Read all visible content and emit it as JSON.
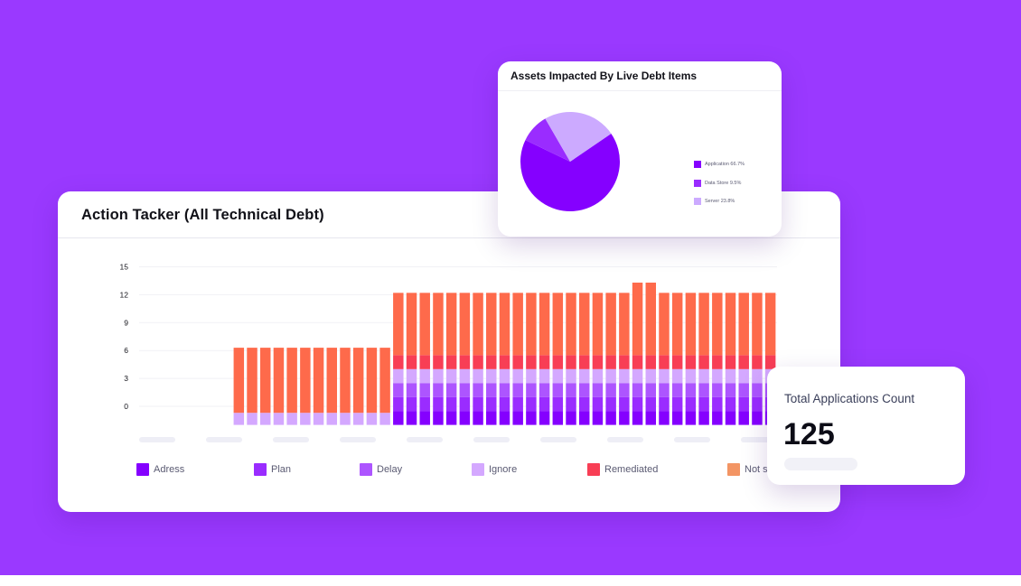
{
  "colors": {
    "background": "#9a39ff",
    "adress": "#8500ff",
    "plan": "#9a2cff",
    "delay": "#ad55ff",
    "ignore": "#d4a8ff",
    "remediated": "#f83e55",
    "not_started": "#fe6a4b"
  },
  "tracker": {
    "title": "Action Tacker (All Technical Debt)",
    "legend": [
      {
        "label": "Adress",
        "color": "#8500ff"
      },
      {
        "label": "Plan",
        "color": "#9a2cff"
      },
      {
        "label": "Delay",
        "color": "#ad55ff"
      },
      {
        "label": "Ignore",
        "color": "#d4a8ff"
      },
      {
        "label": "Remediated",
        "color": "#f83e55"
      },
      {
        "label": "Not s",
        "color": "#f39564"
      }
    ]
  },
  "assets": {
    "title": "Assets Impacted By Live Debt Items",
    "legend": [
      {
        "label": "Application 66.7%",
        "color": "#8500ff"
      },
      {
        "label": "Data Store 9.5%",
        "color": "#9a2cff"
      },
      {
        "label": "Server 23.8%",
        "color": "#ccaaff"
      }
    ]
  },
  "apps": {
    "title": "Total Applications Count",
    "count": "125"
  },
  "chart_data": [
    {
      "type": "bar",
      "stacked": true,
      "title": "Action Tacker (All Technical Debt)",
      "yticks": [
        "15",
        "12",
        "9",
        "6",
        "3",
        "0"
      ],
      "ylim": [
        -2,
        15
      ],
      "grid": true,
      "legend_position": "bottom",
      "bar_count": 48,
      "series": [
        {
          "name": "Adress",
          "color": "#8500ff",
          "values": [
            0,
            0,
            0,
            0,
            0,
            0,
            0,
            0,
            0,
            0,
            0,
            0,
            0,
            0,
            0,
            0,
            0,
            0,
            0,
            1.5,
            1.5,
            1.5,
            1.5,
            1.5,
            1.5,
            1.5,
            1.5,
            1.5,
            1.5,
            1.5,
            1.5,
            1.5,
            1.5,
            1.5,
            1.5,
            1.5,
            1.5,
            1.5,
            1.5,
            1.5,
            1.5,
            1.5,
            1.5,
            1.5,
            1.5,
            1.5,
            1.5,
            1.5
          ]
        },
        {
          "name": "Plan",
          "color": "#9a2cff",
          "values": [
            0,
            0,
            0,
            0,
            0,
            0,
            0,
            0,
            0,
            0,
            0,
            0,
            0,
            0,
            0,
            0,
            0,
            0,
            0,
            1.5,
            1.5,
            1.5,
            1.5,
            1.5,
            1.5,
            1.5,
            1.5,
            1.5,
            1.5,
            1.5,
            1.5,
            1.5,
            1.5,
            1.5,
            1.5,
            1.5,
            1.5,
            1.5,
            1.5,
            1.5,
            1.5,
            1.5,
            1.5,
            1.5,
            1.5,
            1.5,
            1.5,
            1.5
          ]
        },
        {
          "name": "Delay",
          "color": "#ad55ff",
          "values": [
            0,
            0,
            0,
            0,
            0,
            0,
            0,
            0,
            0,
            0,
            0,
            0,
            0,
            0,
            0,
            0,
            0,
            0,
            0,
            1.5,
            1.5,
            1.5,
            1.5,
            1.5,
            1.5,
            1.5,
            1.5,
            1.5,
            1.5,
            1.5,
            1.5,
            1.5,
            1.5,
            1.5,
            1.5,
            1.5,
            1.5,
            1.5,
            1.5,
            1.5,
            1.5,
            1.5,
            1.5,
            1.5,
            1.5,
            1.5,
            1.5,
            1.5
          ]
        },
        {
          "name": "Ignore",
          "color": "#d4a8ff",
          "values": [
            0,
            0,
            0,
            0,
            0,
            0,
            0,
            1.3,
            1.3,
            1.3,
            1.3,
            1.3,
            1.3,
            1.3,
            1.3,
            1.3,
            1.3,
            1.3,
            1.3,
            1.5,
            1.5,
            1.5,
            1.5,
            1.5,
            1.5,
            1.5,
            1.5,
            1.5,
            1.5,
            1.5,
            1.5,
            1.5,
            1.5,
            1.5,
            1.5,
            1.5,
            1.5,
            1.5,
            1.5,
            1.5,
            1.5,
            1.5,
            1.5,
            1.5,
            1.5,
            1.5,
            1.5,
            1.5
          ]
        },
        {
          "name": "Remediated",
          "color": "#f83e55",
          "values": [
            0,
            0,
            0,
            0,
            0,
            0,
            0,
            0,
            0,
            0,
            0,
            0,
            0,
            0,
            0,
            0,
            0,
            0,
            0,
            1.5,
            1.5,
            1.5,
            1.5,
            1.5,
            1.5,
            1.5,
            1.5,
            1.5,
            1.5,
            1.5,
            1.5,
            1.5,
            1.5,
            1.5,
            1.5,
            1.5,
            1.5,
            1.5,
            1.5,
            1.5,
            1.5,
            1.5,
            1.5,
            1.5,
            1.5,
            1.5,
            1.5,
            1.5
          ]
        },
        {
          "name": "Not s",
          "color": "#fe6a4b",
          "values": [
            0,
            0,
            0,
            0,
            0,
            0,
            0,
            7.0,
            7.0,
            7.0,
            7.0,
            7.0,
            7.0,
            7.0,
            7.0,
            7.0,
            7.0,
            7.0,
            7.0,
            6.7,
            6.7,
            6.7,
            6.7,
            6.7,
            6.7,
            6.7,
            6.7,
            6.7,
            6.7,
            6.7,
            6.7,
            6.7,
            6.7,
            6.7,
            6.7,
            6.7,
            6.7,
            7.8,
            7.8,
            6.7,
            6.7,
            6.7,
            6.7,
            6.7,
            6.7,
            6.7,
            6.7,
            6.7
          ]
        }
      ]
    },
    {
      "type": "pie",
      "title": "Assets Impacted By Live Debt Items",
      "slices": [
        {
          "label": "Application",
          "value": 66.7,
          "color": "#8500ff"
        },
        {
          "label": "Data Store",
          "value": 9.5,
          "color": "#9a2cff"
        },
        {
          "label": "Server",
          "value": 23.8,
          "color": "#ccaaff"
        }
      ],
      "pie_colors_in_chart": [
        "#8500ff",
        "#9a2cff",
        "#ccaaff"
      ],
      "legend_position": "right"
    }
  ]
}
